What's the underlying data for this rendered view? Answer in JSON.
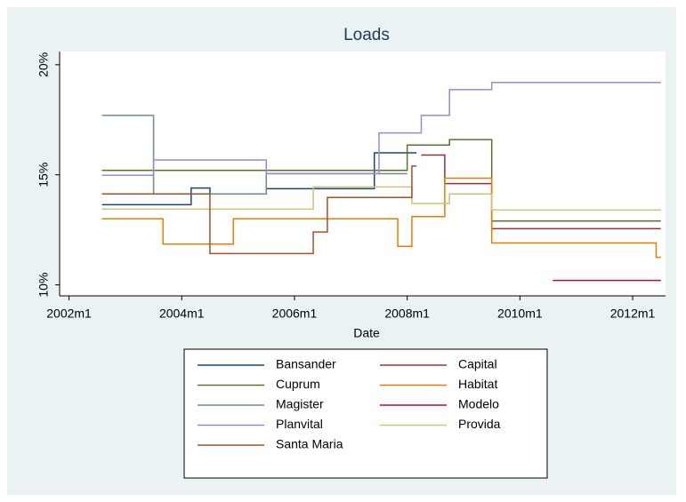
{
  "chart_data": {
    "type": "line",
    "title": "Loads",
    "xlabel": "Date",
    "xlim": [
      "2001m11",
      "2012m8"
    ],
    "xticks": [
      "2002m1",
      "2004m1",
      "2006m1",
      "2008m1",
      "2010m1",
      "2012m1"
    ],
    "ylim": [
      9.5,
      20.6
    ],
    "yticks": [
      {
        "value": 10,
        "label": "10%"
      },
      {
        "value": 15,
        "label": "15%"
      },
      {
        "value": 20,
        "label": "20%"
      }
    ],
    "grid": false,
    "series": [
      {
        "name": "Bansander",
        "color": "#1a476f",
        "x": [
          "2002m8",
          "2004m3",
          "2004m3",
          "2004m7",
          "2004m7",
          "2005m7",
          "2005m7",
          "2007m6",
          "2007m6",
          "2008m3"
        ],
        "values": [
          13.64,
          13.64,
          14.4,
          14.4,
          14.13,
          14.13,
          14.37,
          14.37,
          16.0,
          16.0
        ]
      },
      {
        "name": "Capital",
        "color": "#90353b",
        "x": [
          "2008m4",
          "2008m9",
          "2008m9",
          "2009m7",
          "2009m7",
          "2012m7"
        ],
        "values": [
          15.9,
          15.9,
          14.6,
          14.6,
          12.55,
          12.55
        ]
      },
      {
        "name": "Cuprum",
        "color": "#55752f",
        "x": [
          "2002m8",
          "2008m1",
          "2008m1",
          "2008m10",
          "2008m10",
          "2009m7",
          "2009m7",
          "2012m7"
        ],
        "values": [
          15.2,
          15.2,
          16.35,
          16.35,
          16.6,
          16.6,
          12.9,
          12.9
        ]
      },
      {
        "name": "Habitat",
        "color": "#e37e00",
        "x": [
          "2002m8",
          "2003m9",
          "2003m9",
          "2004m12",
          "2004m12",
          "2007m11",
          "2007m11",
          "2008m2",
          "2008m2",
          "2008m9",
          "2008m9",
          "2009m7",
          "2009m7",
          "2012m6",
          "2012m6",
          "2012m7"
        ],
        "values": [
          13.0,
          13.0,
          11.85,
          11.85,
          13.0,
          13.0,
          11.75,
          11.75,
          13.1,
          13.1,
          14.85,
          14.85,
          11.9,
          11.9,
          11.25,
          11.25
        ]
      },
      {
        "name": "Magister",
        "color": "#6e8e84",
        "x": [
          "2002m8",
          "2003m7",
          "2003m7",
          "2005m7",
          "2005m7",
          "2008m1"
        ],
        "values": [
          17.7,
          17.7,
          14.13,
          14.13,
          15.05,
          15.05
        ]
      },
      {
        "name": "Modelo",
        "color": "#c10534",
        "x": [
          "2010m8",
          "2012m7"
        ],
        "values": [
          10.2,
          10.2
        ]
      },
      {
        "name": "Planvital",
        "color": "#938dd2",
        "x": [
          "2002m8",
          "2003m7",
          "2003m7",
          "2005m7",
          "2005m7",
          "2007m7",
          "2007m7",
          "2008m4",
          "2008m4",
          "2008m10",
          "2008m10",
          "2009m7",
          "2009m7",
          "2012m7"
        ],
        "values": [
          14.98,
          14.98,
          15.67,
          15.67,
          15.06,
          15.06,
          16.9,
          16.9,
          17.7,
          17.7,
          18.87,
          18.87,
          19.19,
          19.19
        ]
      },
      {
        "name": "Provida",
        "color": "#cac27e",
        "x": [
          "2002m8",
          "2006m5",
          "2006m5",
          "2008m2",
          "2008m2",
          "2008m10",
          "2008m10",
          "2009m7",
          "2009m7",
          "2012m7"
        ],
        "values": [
          13.44,
          13.44,
          14.45,
          14.45,
          13.7,
          13.7,
          14.13,
          14.13,
          13.4,
          13.4
        ]
      },
      {
        "name": "Santa Maria",
        "color": "#a0522d",
        "x": [
          "2002m8",
          "2004m7",
          "2004m7",
          "2006m5",
          "2006m5",
          "2006m8",
          "2006m8",
          "2008m2",
          "2008m2",
          "2008m3"
        ],
        "values": [
          14.13,
          14.13,
          11.42,
          11.42,
          12.4,
          12.4,
          13.97,
          13.97,
          15.4,
          15.4
        ]
      }
    ]
  }
}
